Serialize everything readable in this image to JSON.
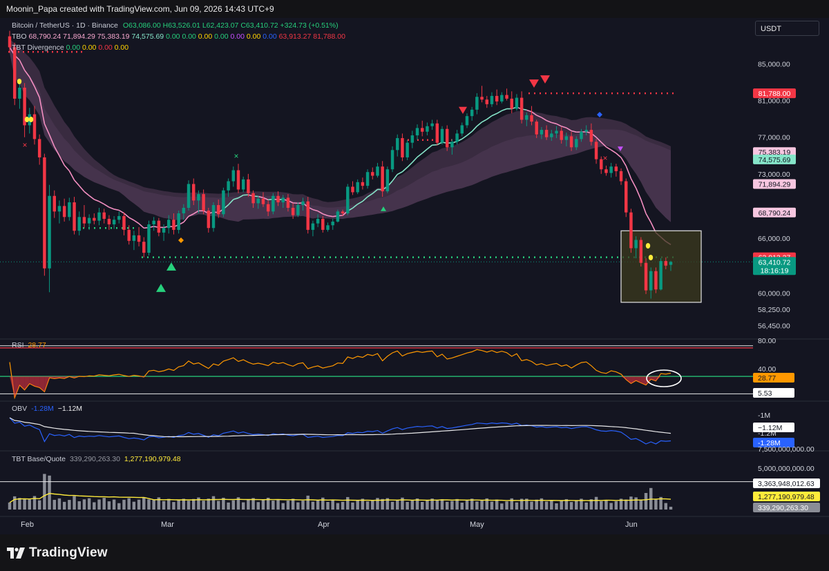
{
  "header": {
    "caption": "Moonin_Papa created with TradingView.com, Jun 09, 2026 14:43 UTC+9"
  },
  "legend": {
    "symbol": "Bitcoin / TetherUS · 1D · Binance",
    "ohlc": [
      "O63,086.00",
      "H63,526.01",
      "L62,423.07",
      "C63,410.72",
      "+324.73 (+0.51%)"
    ],
    "tbo_label": "TBO",
    "tbo_values": [
      "68,790.24",
      "71,894.29",
      "75,383.19",
      "74,575.69",
      "0.00",
      "0.00",
      "0.00",
      "0.00",
      "0.00",
      "0.00",
      "0.00",
      "63,913.27",
      "81,788.00"
    ],
    "tbt_div_label": "TBT Divergence",
    "tbt_div_values": [
      "0.00",
      "0.00",
      "0.00",
      "0.00"
    ]
  },
  "currency_button": "USDT",
  "chart_data": {
    "type": "candlestick",
    "title": "Bitcoin / TetherUS · 1D · Binance",
    "months": [
      "Feb",
      "Mar",
      "Apr",
      "May",
      "Jun"
    ],
    "price_ticks": [
      "85,000.00",
      "81,000.00",
      "77,000.00",
      "73,000.00",
      "66,000.00",
      "60,000.00",
      "58,250.00",
      "56,450.00"
    ],
    "price_labels": [
      {
        "text": "81,788.00",
        "value": 81788,
        "color": "#f23645"
      },
      {
        "text": "75,383.19",
        "value": 75383.19,
        "color": "#f7c6e0"
      },
      {
        "text": "74,575.69",
        "value": 74575.69,
        "color": "#86e5c9"
      },
      {
        "text": "71,894.29",
        "value": 71894.29,
        "color": "#f7c6e0"
      },
      {
        "text": "68,790.24",
        "value": 68790.24,
        "color": "#f7c6e0"
      },
      {
        "text": "63,913.27",
        "value": 63913.27,
        "color": "#f23645"
      },
      {
        "text": "63,410.72",
        "value": 63410.72,
        "color": "#089981"
      }
    ],
    "countdown": "18:16:19",
    "resistance_level": 81788,
    "support_level": 63913.27,
    "candles": [
      [
        88000,
        88600,
        86200,
        86800
      ],
      [
        86800,
        87300,
        80500,
        81200
      ],
      [
        81200,
        83000,
        80100,
        82400
      ],
      [
        82400,
        82900,
        77000,
        78300
      ],
      [
        78300,
        80200,
        77400,
        79500
      ],
      [
        79500,
        80400,
        76200,
        76800
      ],
      [
        76800,
        77300,
        74000,
        74800
      ],
      [
        74800,
        75200,
        61900,
        62700
      ],
      [
        62700,
        71800,
        60100,
        70600
      ],
      [
        70600,
        71200,
        68200,
        68900
      ],
      [
        68900,
        70100,
        67600,
        69500
      ],
      [
        69500,
        70300,
        67800,
        68300
      ],
      [
        68300,
        70400,
        67900,
        69900
      ],
      [
        69900,
        70500,
        66400,
        66800
      ],
      [
        66800,
        68900,
        66300,
        68300
      ],
      [
        68300,
        69600,
        67100,
        67600
      ],
      [
        67600,
        68600,
        66900,
        68200
      ],
      [
        68200,
        68700,
        67500,
        67900
      ],
      [
        67900,
        69300,
        67400,
        68800
      ],
      [
        68800,
        69200,
        67600,
        68100
      ],
      [
        68100,
        68500,
        66900,
        67500
      ],
      [
        67500,
        68400,
        67000,
        68000
      ],
      [
        68000,
        68900,
        67600,
        68400
      ],
      [
        68400,
        68800,
        66300,
        66900
      ],
      [
        66900,
        67400,
        65300,
        65700
      ],
      [
        65700,
        66800,
        64700,
        66300
      ],
      [
        66300,
        67200,
        65100,
        65600
      ],
      [
        65600,
        66100,
        63900,
        64400
      ],
      [
        64400,
        67900,
        64100,
        67500
      ],
      [
        67500,
        68300,
        66800,
        67900
      ],
      [
        67900,
        68200,
        66200,
        66600
      ],
      [
        66600,
        67500,
        65700,
        67100
      ],
      [
        67100,
        68500,
        66500,
        68000
      ],
      [
        68000,
        68700,
        66400,
        66900
      ],
      [
        66900,
        69000,
        66500,
        68700
      ],
      [
        68700,
        69700,
        68000,
        69300
      ],
      [
        69300,
        72300,
        69000,
        71900
      ],
      [
        71900,
        72500,
        69600,
        70100
      ],
      [
        70100,
        71200,
        68700,
        70800
      ],
      [
        70800,
        71300,
        68600,
        69000
      ],
      [
        69000,
        69300,
        66600,
        67100
      ],
      [
        67100,
        69900,
        66700,
        69600
      ],
      [
        69600,
        70200,
        68200,
        68600
      ],
      [
        68600,
        71500,
        68300,
        71200
      ],
      [
        71200,
        72500,
        70500,
        72200
      ],
      [
        72200,
        73800,
        71600,
        73400
      ],
      [
        73400,
        74100,
        70900,
        71300
      ],
      [
        71300,
        72700,
        71000,
        72400
      ],
      [
        72400,
        73000,
        70500,
        70900
      ],
      [
        70900,
        71200,
        69300,
        69800
      ],
      [
        69800,
        70600,
        69200,
        70300
      ],
      [
        70300,
        71000,
        69400,
        69700
      ],
      [
        69700,
        70100,
        68400,
        68900
      ],
      [
        68900,
        70900,
        68600,
        70600
      ],
      [
        70600,
        71100,
        69500,
        69900
      ],
      [
        69900,
        70700,
        69300,
        70400
      ],
      [
        70400,
        70800,
        68900,
        69300
      ],
      [
        69300,
        69800,
        68100,
        68500
      ],
      [
        68500,
        69900,
        68300,
        69600
      ],
      [
        69600,
        70400,
        69000,
        70000
      ],
      [
        70000,
        70500,
        66500,
        66900
      ],
      [
        66900,
        67900,
        66200,
        67600
      ],
      [
        67600,
        68600,
        67200,
        68100
      ],
      [
        68100,
        68400,
        66600,
        66900
      ],
      [
        66900,
        67700,
        66700,
        67400
      ],
      [
        67400,
        68100,
        66900,
        67800
      ],
      [
        67800,
        69100,
        67700,
        68900
      ],
      [
        68900,
        69100,
        68400,
        68700
      ],
      [
        68700,
        71900,
        68500,
        71600
      ],
      [
        71600,
        72200,
        70700,
        71000
      ],
      [
        71000,
        72400,
        70800,
        72100
      ],
      [
        72100,
        72600,
        71300,
        71700
      ],
      [
        71700,
        73500,
        71400,
        73200
      ],
      [
        73200,
        73700,
        72400,
        72800
      ],
      [
        72800,
        74200,
        72600,
        73800
      ],
      [
        73800,
        74400,
        70500,
        71100
      ],
      [
        71100,
        73800,
        70900,
        73500
      ],
      [
        73500,
        76000,
        73200,
        75600
      ],
      [
        75600,
        77300,
        74900,
        76900
      ],
      [
        76900,
        77400,
        74400,
        74800
      ],
      [
        74800,
        76700,
        74500,
        76400
      ],
      [
        76400,
        77700,
        75800,
        77200
      ],
      [
        77200,
        78400,
        76700,
        78000
      ],
      [
        78000,
        78800,
        77100,
        77600
      ],
      [
        77600,
        78600,
        77200,
        78200
      ],
      [
        78200,
        78900,
        77800,
        78500
      ],
      [
        78500,
        78900,
        76100,
        76400
      ],
      [
        76400,
        78200,
        76200,
        77900
      ],
      [
        77900,
        78300,
        75500,
        75900
      ],
      [
        75900,
        76800,
        75100,
        76500
      ],
      [
        76500,
        77800,
        76200,
        77400
      ],
      [
        77400,
        78600,
        77100,
        78300
      ],
      [
        78300,
        79600,
        78000,
        79300
      ],
      [
        79300,
        80300,
        78800,
        80000
      ],
      [
        80000,
        81800,
        79500,
        81400
      ],
      [
        81400,
        82600,
        80800,
        81100
      ],
      [
        81100,
        81500,
        80200,
        80600
      ],
      [
        80600,
        81900,
        80300,
        81500
      ],
      [
        81500,
        82200,
        80500,
        80900
      ],
      [
        80900,
        81900,
        80700,
        81600
      ],
      [
        81600,
        82300,
        81000,
        81200
      ],
      [
        81200,
        82000,
        79600,
        80100
      ],
      [
        80100,
        81700,
        79900,
        81300
      ],
      [
        81300,
        82000,
        78500,
        78900
      ],
      [
        78900,
        79700,
        78200,
        79400
      ],
      [
        79400,
        80400,
        78300,
        78700
      ],
      [
        78700,
        78900,
        76900,
        77300
      ],
      [
        77300,
        78100,
        76800,
        77800
      ],
      [
        77800,
        78300,
        76700,
        77000
      ],
      [
        77000,
        77800,
        76600,
        77400
      ],
      [
        77400,
        78200,
        76900,
        77700
      ],
      [
        77700,
        78100,
        76300,
        76700
      ],
      [
        76700,
        77500,
        76000,
        77100
      ],
      [
        77100,
        77600,
        75500,
        75900
      ],
      [
        75900,
        77100,
        75600,
        76800
      ],
      [
        76800,
        77900,
        76500,
        77600
      ],
      [
        77600,
        78300,
        77200,
        77800
      ],
      [
        77800,
        78500,
        76100,
        76500
      ],
      [
        76500,
        76800,
        74100,
        74600
      ],
      [
        74600,
        74900,
        73000,
        73500
      ],
      [
        73500,
        73900,
        72800,
        73100
      ],
      [
        73100,
        74200,
        72600,
        73800
      ],
      [
        73800,
        74100,
        72700,
        73300
      ],
      [
        73300,
        73600,
        71800,
        72200
      ],
      [
        72200,
        72500,
        68300,
        68800
      ],
      [
        68800,
        69200,
        64400,
        64900
      ],
      [
        64900,
        66200,
        63800,
        65800
      ],
      [
        65800,
        66100,
        62900,
        63300
      ],
      [
        63300,
        63800,
        59900,
        60300
      ],
      [
        60300,
        62800,
        59400,
        62400
      ],
      [
        62400,
        62800,
        60000,
        60400
      ],
      [
        60400,
        63800,
        60300,
        63500
      ],
      [
        63500,
        63900,
        62600,
        63000
      ],
      [
        63086,
        63526.01,
        62423.07,
        63410.72
      ]
    ],
    "rsi": {
      "label": "RSI",
      "value": "28.77",
      "ticks": [
        "80.00",
        "40.00"
      ],
      "value_badge": "28.77",
      "low_badge": "5.53",
      "upper_band": 70,
      "lower_band": 30
    },
    "obv": {
      "label": "OBV",
      "value1": "-1.28M",
      "value2": "−1.12M",
      "ticks": [
        "-1M",
        "-1.2M"
      ],
      "badges": [
        "−1.12M",
        "-1.28M"
      ]
    },
    "tbt_base_quote": {
      "label": "TBT Base/Quote",
      "value1": "339,290,263.30",
      "value2": "1,277,190,979.48",
      "ticks": [
        "7,500,000,000.00",
        "5,000,000,000.00"
      ],
      "badges": [
        "3,363,948,012.63",
        "1,277,190,979.48",
        "339,290,263.30"
      ]
    }
  },
  "footer": {
    "brand": "TradingView"
  }
}
